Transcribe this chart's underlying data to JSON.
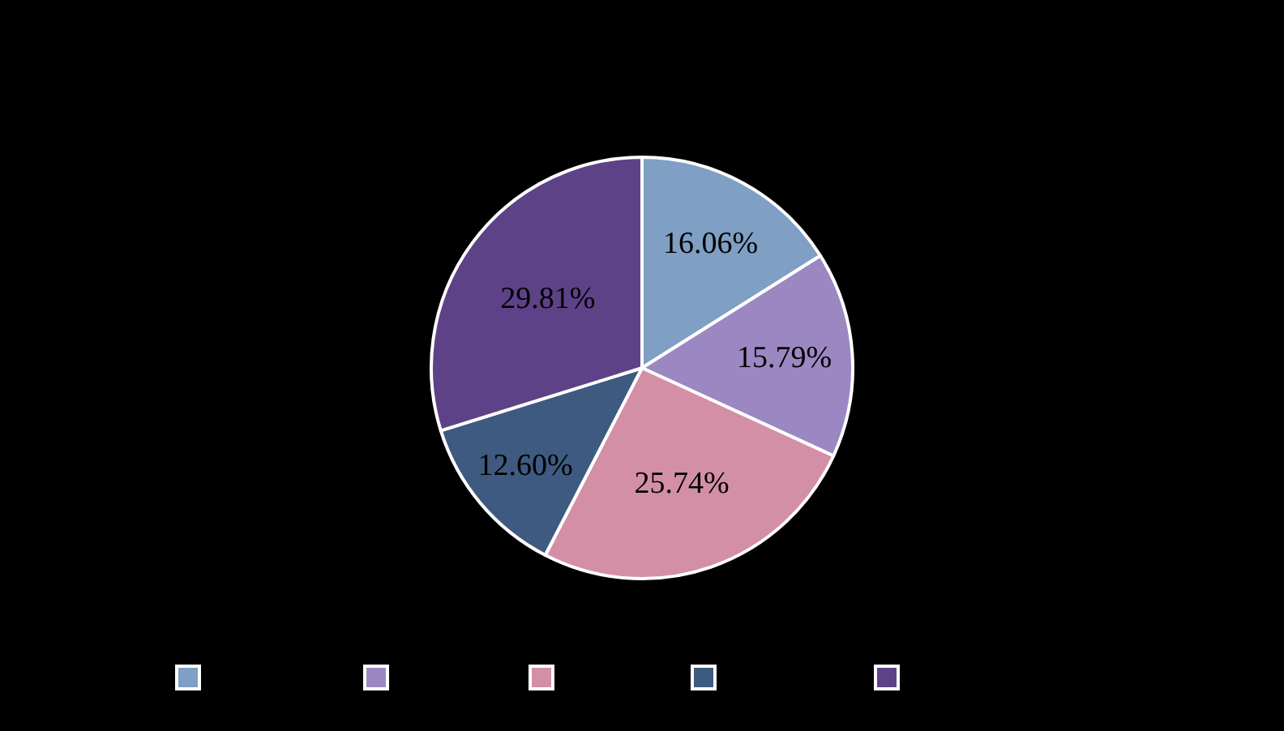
{
  "chart_data": {
    "type": "pie",
    "categories": [
      null,
      null,
      null,
      null,
      null
    ],
    "values": [
      16.06,
      15.79,
      25.74,
      12.6,
      29.81
    ],
    "colors": [
      "#7f9fc4",
      "#9b87c2",
      "#d38fa6",
      "#3f5a80",
      "#5e4287"
    ],
    "value_labels": [
      "16.06%",
      "15.79%",
      "25.74%",
      "12.60%",
      "29.81%"
    ]
  }
}
